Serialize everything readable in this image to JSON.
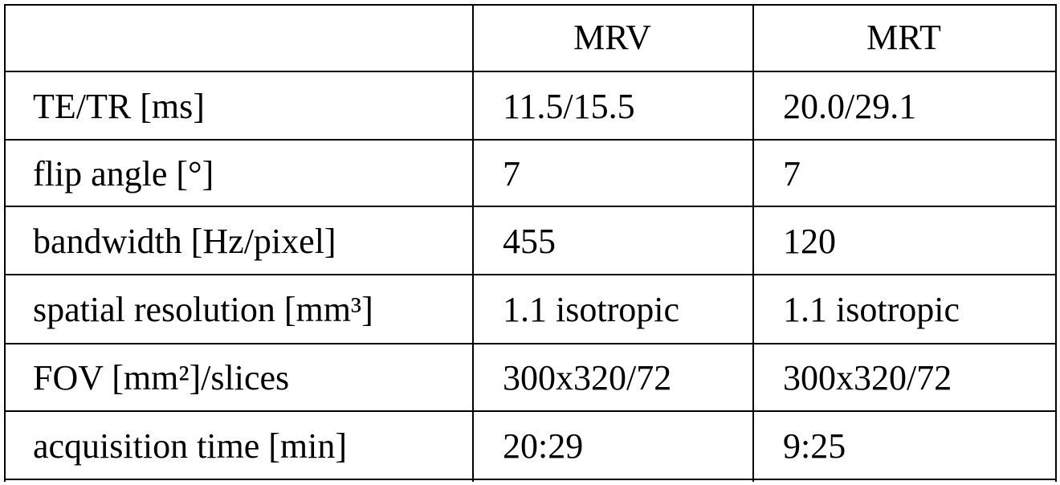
{
  "table": {
    "columns": [
      "MRV",
      "MRT"
    ],
    "rows": [
      [
        "TE/TR [ms]",
        "11.5/15.5",
        "20.0/29.1"
      ],
      [
        "flip angle [°]",
        "7",
        "7"
      ],
      [
        "bandwidth [Hz/pixel]",
        "455",
        "120"
      ],
      [
        "spatial resolution [mm³]",
        "1.1 isotropic",
        "1.1 isotropic"
      ],
      [
        "FOV [mm²]/slices",
        "300x320/72",
        "300x320/72"
      ],
      [
        "acquisition time [min]",
        "20:29",
        "9:25"
      ]
    ]
  }
}
